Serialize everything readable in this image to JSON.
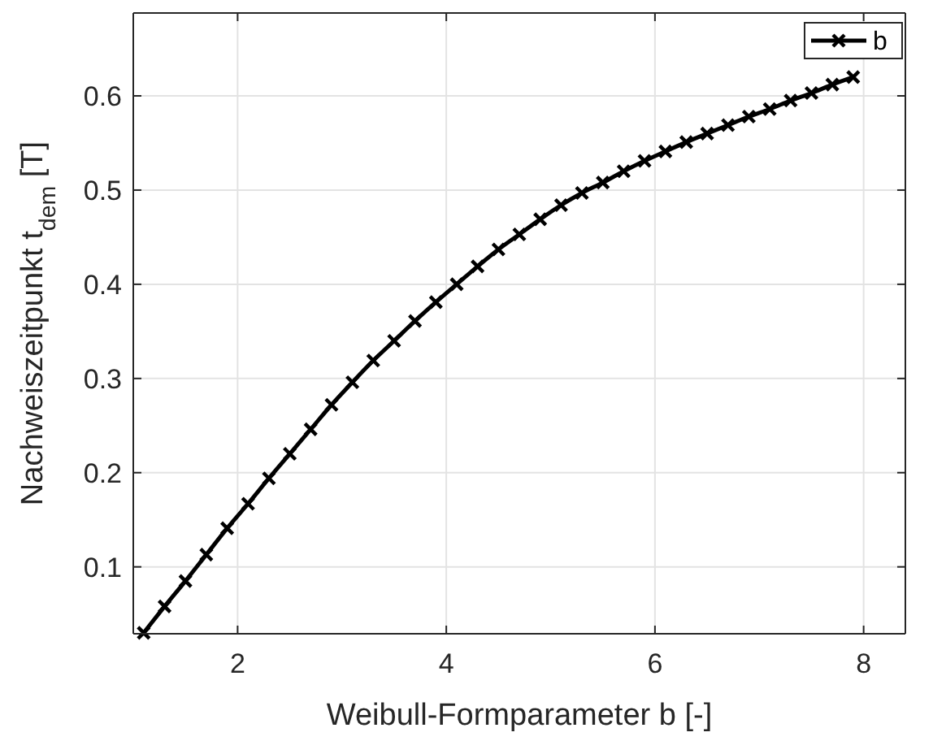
{
  "chart_data": {
    "type": "line",
    "xlabel": "Weibull-Formparameter b [-]",
    "ylabel": "Nachweiszeitpunkt t$_{dem}$ [T]",
    "x": [
      1.1,
      1.3,
      1.5,
      1.7,
      1.9,
      2.1,
      2.3,
      2.5,
      2.7,
      2.9,
      3.1,
      3.3,
      3.5,
      3.7,
      3.9,
      4.1,
      4.3,
      4.5,
      4.7,
      4.9,
      5.1,
      5.3,
      5.5,
      5.7,
      5.9,
      6.1,
      6.3,
      6.5,
      6.7,
      6.9,
      7.1,
      7.3,
      7.5,
      7.7,
      7.9
    ],
    "series": [
      {
        "name": "b",
        "color": "#000000",
        "values": [
          0.03,
          0.058,
          0.085,
          0.113,
          0.141,
          0.167,
          0.194,
          0.22,
          0.246,
          0.272,
          0.296,
          0.319,
          0.34,
          0.361,
          0.381,
          0.4,
          0.419,
          0.437,
          0.453,
          0.469,
          0.484,
          0.497,
          0.508,
          0.52,
          0.531,
          0.541,
          0.551,
          0.56,
          0.569,
          0.578,
          0.586,
          0.595,
          0.603,
          0.612,
          0.62
        ]
      }
    ],
    "xlim": [
      1,
      8.4
    ],
    "ylim": [
      0.029,
      0.688
    ],
    "xticks": [
      2,
      4,
      6,
      8
    ],
    "yticks": [
      0.1,
      0.2,
      0.3,
      0.4,
      0.5,
      0.6
    ],
    "grid": true,
    "legend": "top right",
    "marker": "cross",
    "line_style": "solid"
  }
}
